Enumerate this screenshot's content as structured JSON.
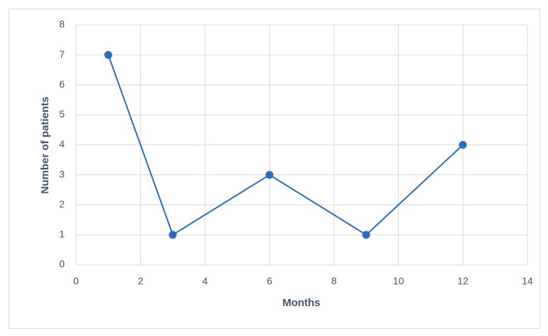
{
  "chart_data": {
    "type": "line",
    "x_label": "Months",
    "y_label": "Number of patients",
    "x": [
      1,
      3,
      6,
      9,
      12
    ],
    "series": [
      {
        "color": "#2a6ebb",
        "values": [
          7,
          1,
          3,
          1,
          4
        ]
      }
    ],
    "xlim": [
      0,
      14
    ],
    "xticks": [
      0,
      2,
      4,
      6,
      8,
      10,
      12,
      14
    ],
    "ylim": [
      0,
      8
    ],
    "yticks": [
      0,
      1,
      2,
      3,
      4,
      5,
      6,
      7,
      8
    ],
    "grid": true
  }
}
